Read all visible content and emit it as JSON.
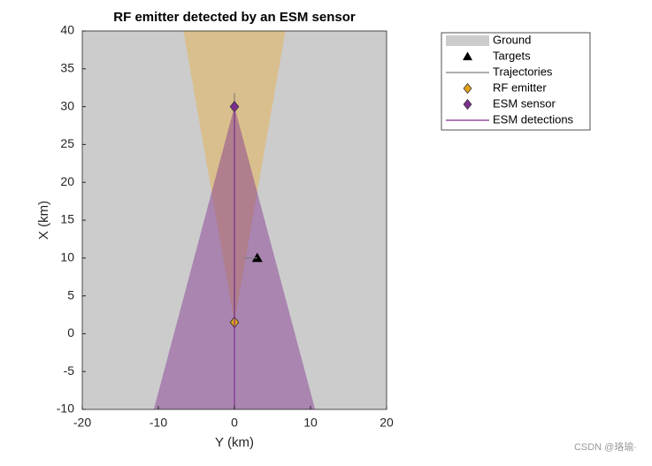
{
  "chart_data": {
    "type": "theater",
    "title": "RF emitter detected by an ESM sensor",
    "xlabel": "Y (km)",
    "ylabel": "X (km)",
    "xlim": [
      -20,
      20
    ],
    "xticks": [
      -20,
      -10,
      0,
      10,
      20
    ],
    "ylim": [
      -10,
      40
    ],
    "yticks": [
      -10,
      -5,
      0,
      5,
      10,
      15,
      20,
      25,
      30,
      35,
      40
    ],
    "coverage": [
      {
        "color": "#e8b040",
        "x": [
          0,
          -6.7,
          6.7
        ],
        "y": [
          1.5,
          40,
          40
        ]
      },
      {
        "color": "#7e2f8e",
        "x": [
          0,
          -10.6,
          10.6
        ],
        "y": [
          30,
          -10,
          -10
        ]
      }
    ],
    "series": [
      {
        "name": "Ground",
        "kind": "patch",
        "color": "#cccccc"
      },
      {
        "name": "Targets",
        "kind": "marker",
        "marker": "triangle",
        "color": "#000000",
        "x": [
          3
        ],
        "y": [
          10
        ]
      },
      {
        "name": "Trajectories",
        "kind": "line",
        "color": "#808080",
        "x": [
          0,
          0,
          null,
          1.2,
          3
        ],
        "y": [
          31.8,
          1.5,
          null,
          10,
          10
        ]
      },
      {
        "name": "RF emitter",
        "kind": "marker",
        "marker": "diamond",
        "color": "#e3a21a",
        "x": [
          0
        ],
        "y": [
          1.5
        ]
      },
      {
        "name": "ESM sensor",
        "kind": "marker",
        "marker": "diamond",
        "color": "#7e2f8e",
        "x": [
          0
        ],
        "y": [
          30
        ]
      },
      {
        "name": "ESM detections",
        "kind": "line",
        "color": "#7e2f8e",
        "x": [
          0,
          0
        ],
        "y": [
          30,
          -10
        ]
      }
    ],
    "watermark": "CSDN @珞瑜·"
  }
}
